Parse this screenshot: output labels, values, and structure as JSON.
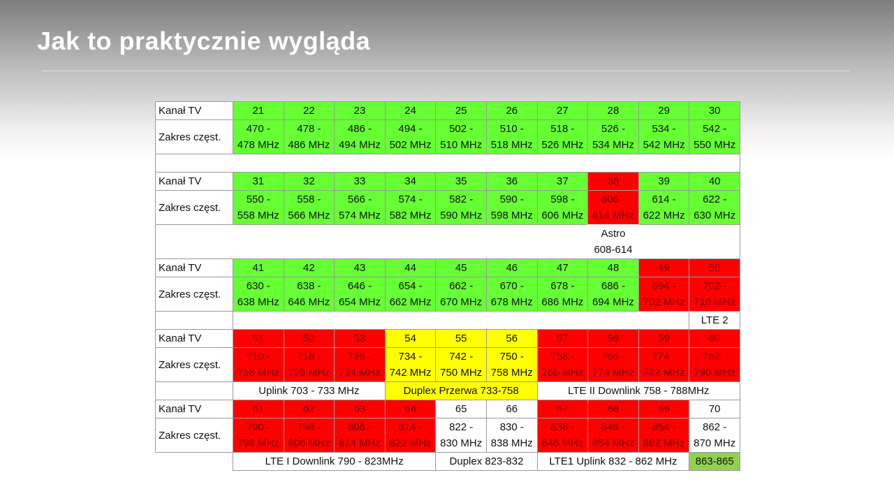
{
  "header": {
    "title": "Jak to praktycznie wygląda"
  },
  "table": {
    "label_channel": "Kanał TV",
    "label_range": "Zakres częst.",
    "blocks": [
      {
        "cells": [
          {
            "channel": "21",
            "from": "470 -",
            "to": "478 MHz",
            "color": "#66ff33"
          },
          {
            "channel": "22",
            "from": "478 -",
            "to": "486 MHz",
            "color": "#66ff33"
          },
          {
            "channel": "23",
            "from": "486 -",
            "to": "494 MHz",
            "color": "#66ff33"
          },
          {
            "channel": "24",
            "from": "494 -",
            "to": "502 MHz",
            "color": "#66ff33"
          },
          {
            "channel": "25",
            "from": "502 -",
            "to": "510 MHz",
            "color": "#66ff33"
          },
          {
            "channel": "26",
            "from": "510 -",
            "to": "518 MHz",
            "color": "#66ff33"
          },
          {
            "channel": "27",
            "from": "518 -",
            "to": "526 MHz",
            "color": "#66ff33"
          },
          {
            "channel": "28",
            "from": "526 -",
            "to": "534 MHz",
            "color": "#66ff33"
          },
          {
            "channel": "29",
            "from": "534 -",
            "to": "542 MHz",
            "color": "#66ff33"
          },
          {
            "channel": "30",
            "from": "542 -",
            "to": "550 MHz",
            "color": "#66ff33"
          }
        ],
        "notes": []
      },
      {
        "cells": [
          {
            "channel": "31",
            "from": "550 -",
            "to": "558 MHz",
            "color": "#66ff33"
          },
          {
            "channel": "32",
            "from": "558 -",
            "to": "566 MHz",
            "color": "#66ff33"
          },
          {
            "channel": "33",
            "from": "566 -",
            "to": "574 MHz",
            "color": "#66ff33"
          },
          {
            "channel": "34",
            "from": "574 -",
            "to": "582 MHz",
            "color": "#66ff33"
          },
          {
            "channel": "35",
            "from": "582 -",
            "to": "590 MHz",
            "color": "#66ff33"
          },
          {
            "channel": "36",
            "from": "590 -",
            "to": "598 MHz",
            "color": "#66ff33"
          },
          {
            "channel": "37",
            "from": "598 -",
            "to": "606 MHz",
            "color": "#66ff33"
          },
          {
            "channel": "38",
            "from": "606 -",
            "to": "614 MHz",
            "color": "#ff0000"
          },
          {
            "channel": "39",
            "from": "614 -",
            "to": "622 MHz",
            "color": "#66ff33"
          },
          {
            "channel": "40",
            "from": "622 -",
            "to": "630 MHz",
            "color": "#66ff33"
          }
        ],
        "notes": [
          {
            "lines": [
              "Astro",
              "608-614"
            ],
            "start": 7,
            "span": 1,
            "color": "#ffffff"
          }
        ]
      },
      {
        "cells": [
          {
            "channel": "41",
            "from": "630 -",
            "to": "638 MHz",
            "color": "#66ff33"
          },
          {
            "channel": "42",
            "from": "638 -",
            "to": "646 MHz",
            "color": "#66ff33"
          },
          {
            "channel": "43",
            "from": "646 -",
            "to": "654 MHz",
            "color": "#66ff33"
          },
          {
            "channel": "44",
            "from": "654 -",
            "to": "662 MHz",
            "color": "#66ff33"
          },
          {
            "channel": "45",
            "from": "662 -",
            "to": "670 MHz",
            "color": "#66ff33"
          },
          {
            "channel": "46",
            "from": "670 -",
            "to": "678 MHz",
            "color": "#66ff33"
          },
          {
            "channel": "47",
            "from": "678 -",
            "to": "686 MHz",
            "color": "#66ff33"
          },
          {
            "channel": "48",
            "from": "686 -",
            "to": "694 MHz",
            "color": "#66ff33"
          },
          {
            "channel": "49",
            "from": "694 -",
            "to": "702 MHz",
            "color": "#ff0000"
          },
          {
            "channel": "50",
            "from": "702 -",
            "to": "710 MHz",
            "color": "#ff0000"
          }
        ],
        "notes": [
          {
            "lines": [
              "LTE 2"
            ],
            "start": 9,
            "span": 1,
            "color": "#ffffff"
          }
        ]
      },
      {
        "cells": [
          {
            "channel": "51",
            "from": "710 -",
            "to": "718 MHz",
            "color": "#ff0000"
          },
          {
            "channel": "52",
            "from": "718 -",
            "to": "726 MHz",
            "color": "#ff0000"
          },
          {
            "channel": "53",
            "from": "726 -",
            "to": "734 MHz",
            "color": "#ff0000"
          },
          {
            "channel": "54",
            "from": "734 -",
            "to": "742 MHz",
            "color": "#ffff00"
          },
          {
            "channel": "55",
            "from": "742 -",
            "to": "750 MHz",
            "color": "#ffff00"
          },
          {
            "channel": "56",
            "from": "750 -",
            "to": "758 MHz",
            "color": "#ffff00"
          },
          {
            "channel": "57",
            "from": "758 -",
            "to": "766 MHz",
            "color": "#ff0000"
          },
          {
            "channel": "58",
            "from": "766 -",
            "to": "774 MHz",
            "color": "#ff0000"
          },
          {
            "channel": "59",
            "from": "774 -",
            "to": "782 MHz",
            "color": "#ff0000"
          },
          {
            "channel": "60",
            "from": "782 -",
            "to": "790 MHz",
            "color": "#ff0000"
          }
        ],
        "notes": [
          {
            "lines": [
              "Uplink 703 - 733 MHz"
            ],
            "start": 0,
            "span": 3,
            "color": "#ffffff"
          },
          {
            "lines": [
              "Duplex Przerwa 733-758"
            ],
            "start": 3,
            "span": 3,
            "color": "#ffff00"
          },
          {
            "lines": [
              "LTE II Downlink 758 - 788MHz"
            ],
            "start": 6,
            "span": 4,
            "color": "#ffffff"
          }
        ]
      },
      {
        "cells": [
          {
            "channel": "61",
            "from": "790 -",
            "to": "798 MHz",
            "color": "#ff0000"
          },
          {
            "channel": "62",
            "from": "798 -",
            "to": "806 MHz",
            "color": "#ff0000"
          },
          {
            "channel": "63",
            "from": "806 -",
            "to": "814 MHz",
            "color": "#ff0000"
          },
          {
            "channel": "64",
            "from": "814 -",
            "to": "822 MHz",
            "color": "#ff0000"
          },
          {
            "channel": "65",
            "from": "822 -",
            "to": "830 MHz",
            "color": "#ffffff"
          },
          {
            "channel": "66",
            "from": "830 -",
            "to": "838 MHz",
            "color": "#ffffff"
          },
          {
            "channel": "67",
            "from": "838 -",
            "to": "846 MHz",
            "color": "#ff0000"
          },
          {
            "channel": "68",
            "from": "846 -",
            "to": "854 MHz",
            "color": "#ff0000"
          },
          {
            "channel": "69",
            "from": "854 -",
            "to": "862 MHz",
            "color": "#ff0000"
          },
          {
            "channel": "70",
            "from": "862 -",
            "to": "870 MHz",
            "color": "#ffffff"
          }
        ],
        "notes": [
          {
            "lines": [
              "LTE I Downlink 790 - 823MHz"
            ],
            "start": 0,
            "span": 4,
            "color": "#ffffff"
          },
          {
            "lines": [
              "Duplex 823-832"
            ],
            "start": 4,
            "span": 2,
            "color": "#ffffff"
          },
          {
            "lines": [
              "LTE1 Uplink 832 - 862 MHz"
            ],
            "start": 6,
            "span": 3,
            "color": "#ffffff"
          },
          {
            "lines": [
              "863-865"
            ],
            "start": 9,
            "span": 1,
            "color": "#92d050"
          }
        ]
      }
    ]
  }
}
